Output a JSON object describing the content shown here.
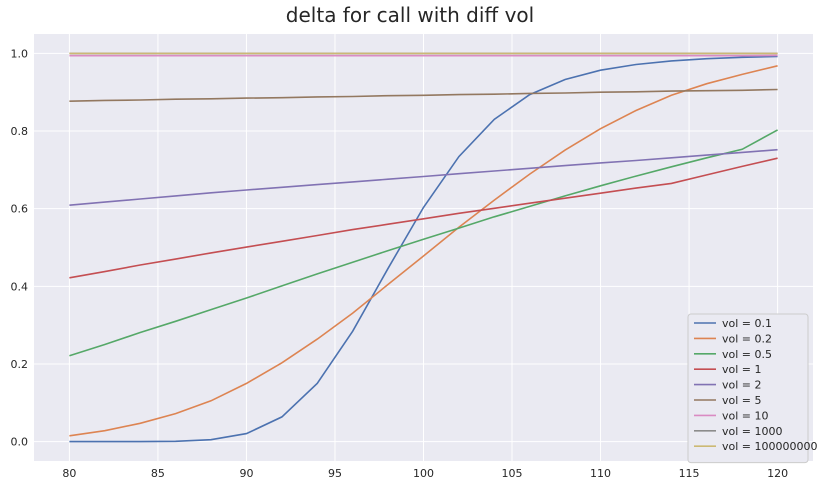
{
  "chart_data": {
    "type": "line",
    "title": "delta for call with diff vol",
    "xlabel": "",
    "ylabel": "",
    "xlim": [
      78,
      122
    ],
    "ylim": [
      -0.05,
      1.05
    ],
    "xticks": [
      80,
      85,
      90,
      95,
      100,
      105,
      110,
      115,
      120
    ],
    "yticks": [
      0.0,
      0.2,
      0.4,
      0.6,
      0.8,
      1.0
    ],
    "xtick_labels": [
      "80",
      "85",
      "90",
      "95",
      "100",
      "105",
      "110",
      "115",
      "120"
    ],
    "ytick_labels": [
      "0.0",
      "0.2",
      "0.4",
      "0.6",
      "0.8",
      "1.0"
    ],
    "grid": true,
    "legend_position": "bottom-right",
    "x": [
      80,
      82,
      84,
      86,
      88,
      90,
      92,
      94,
      96,
      98,
      100,
      102,
      104,
      106,
      108,
      110,
      112,
      114,
      116,
      118,
      120
    ],
    "series": [
      {
        "name": "vol = 0.1",
        "color": "#4c72b0",
        "values": [
          0.0,
          0.0,
          0.0001,
          0.0008,
          0.0049,
          0.0207,
          0.0637,
          0.1502,
          0.2845,
          0.4463,
          0.6034,
          0.7342,
          0.8302,
          0.894,
          0.9328,
          0.9568,
          0.9715,
          0.9806,
          0.9863,
          0.9899,
          0.9922
        ]
      },
      {
        "name": "vol = 0.2",
        "color": "#dd8452",
        "values": [
          0.015,
          0.028,
          0.047,
          0.072,
          0.105,
          0.15,
          0.203,
          0.264,
          0.331,
          0.405,
          0.478,
          0.552,
          0.622,
          0.689,
          0.751,
          0.806,
          0.853,
          0.892,
          0.922,
          0.946,
          0.968
        ]
      },
      {
        "name": "vol = 0.5",
        "color": "#55a868",
        "values": [
          0.221,
          0.25,
          0.281,
          0.31,
          0.34,
          0.37,
          0.401,
          0.432,
          0.462,
          0.492,
          0.521,
          0.55,
          0.579,
          0.606,
          0.633,
          0.659,
          0.684,
          0.708,
          0.731,
          0.753,
          0.803
        ]
      },
      {
        "name": "vol = 1",
        "color": "#c44e52",
        "values": [
          0.422,
          0.438,
          0.455,
          0.47,
          0.486,
          0.501,
          0.516,
          0.531,
          0.546,
          0.56,
          0.574,
          0.588,
          0.601,
          0.614,
          0.627,
          0.64,
          0.653,
          0.665,
          0.687,
          0.709,
          0.73
        ]
      },
      {
        "name": "vol = 2",
        "color": "#8172b3",
        "values": [
          0.609,
          0.617,
          0.625,
          0.633,
          0.641,
          0.648,
          0.655,
          0.662,
          0.669,
          0.676,
          0.683,
          0.69,
          0.697,
          0.704,
          0.711,
          0.718,
          0.724,
          0.731,
          0.738,
          0.745,
          0.752
        ]
      },
      {
        "name": "vol = 5",
        "color": "#937860",
        "values": [
          0.877,
          0.879,
          0.88,
          0.882,
          0.883,
          0.885,
          0.886,
          0.888,
          0.889,
          0.891,
          0.892,
          0.894,
          0.895,
          0.897,
          0.898,
          0.9,
          0.901,
          0.903,
          0.904,
          0.905,
          0.907
        ]
      },
      {
        "name": "vol = 10",
        "color": "#da8bc3",
        "values": [
          0.994,
          0.994,
          0.994,
          0.994,
          0.994,
          0.994,
          0.994,
          0.994,
          0.994,
          0.994,
          0.994,
          0.994,
          0.994,
          0.994,
          0.994,
          0.994,
          0.994,
          0.994,
          0.994,
          0.994,
          0.995
        ]
      },
      {
        "name": "vol = 1000",
        "color": "#8c8c8c",
        "values": [
          1.0,
          1.0,
          1.0,
          1.0,
          1.0,
          1.0,
          1.0,
          1.0,
          1.0,
          1.0,
          1.0,
          1.0,
          1.0,
          1.0,
          1.0,
          1.0,
          1.0,
          1.0,
          1.0,
          1.0,
          1.0
        ]
      },
      {
        "name": "vol = 100000000",
        "color": "#ccb974",
        "values": [
          1.0,
          1.0,
          1.0,
          1.0,
          1.0,
          1.0,
          1.0,
          1.0,
          1.0,
          1.0,
          1.0,
          1.0,
          1.0,
          1.0,
          1.0,
          1.0,
          1.0,
          1.0,
          1.0,
          1.0,
          1.0
        ]
      }
    ]
  },
  "style": {
    "plot_background": "#eaeaf2",
    "grid_color": "#ffffff",
    "text_color": "#262626"
  }
}
